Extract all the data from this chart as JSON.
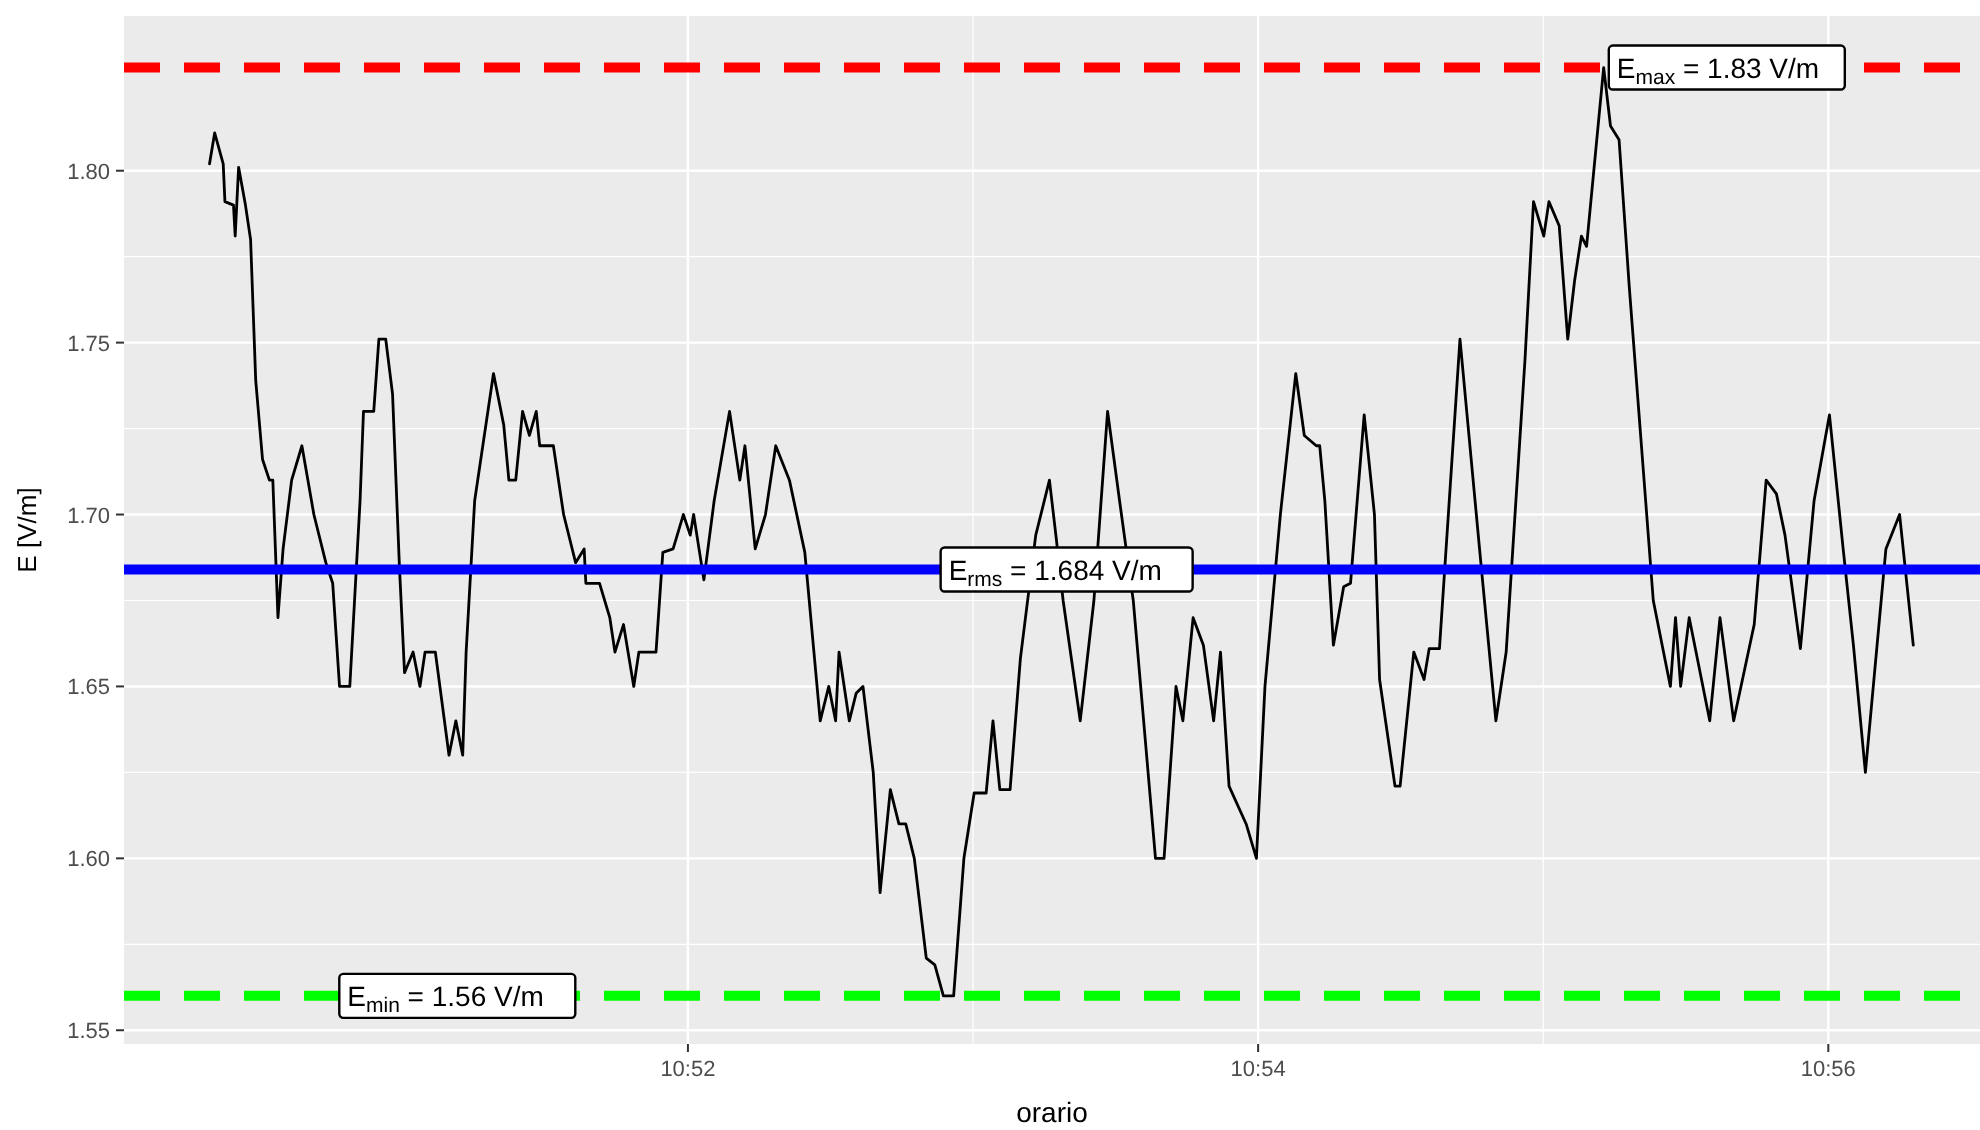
{
  "chart_data": {
    "type": "line",
    "xlabel": "orario",
    "ylabel": "E [V/m]",
    "xlim": [
      10.8337,
      10.9422
    ],
    "ylim": [
      1.546,
      1.845
    ],
    "xticks": [
      {
        "value": 10.866667,
        "label": "10:52"
      },
      {
        "value": 10.9,
        "label": "10:54"
      },
      {
        "value": 10.933333,
        "label": "10:56"
      }
    ],
    "yticks": [
      {
        "value": 1.55,
        "label": "1.55"
      },
      {
        "value": 1.6,
        "label": "1.60"
      },
      {
        "value": 1.65,
        "label": "1.65"
      },
      {
        "value": 1.7,
        "label": "1.70"
      },
      {
        "value": 1.75,
        "label": "1.75"
      },
      {
        "value": 1.8,
        "label": "1.80"
      }
    ],
    "grid": true,
    "marker": "none",
    "line_style": "solid",
    "series": [
      {
        "color": "#000000",
        "x": [
          10.8387,
          10.839,
          10.8395,
          10.8396,
          10.8401,
          10.8402,
          10.8404,
          10.8408,
          10.8411,
          10.8414,
          10.8418,
          10.8422,
          10.8424,
          10.8427,
          10.843,
          10.8435,
          10.8441,
          10.8448,
          10.8455,
          10.8459,
          10.8463,
          10.8469,
          10.8475,
          10.8477,
          10.8483,
          10.8486,
          10.849,
          10.8494,
          10.8498,
          10.8501,
          10.8506,
          10.851,
          10.8513,
          10.8519,
          10.8527,
          10.8531,
          10.8535,
          10.8537,
          10.8542,
          10.8553,
          10.8559,
          10.8562,
          10.8566,
          10.857,
          10.8574,
          10.8578,
          10.858,
          10.8588,
          10.8594,
          10.8601,
          10.8606,
          10.8607,
          10.8615,
          10.8621,
          10.8624,
          10.8629,
          10.8635,
          10.8638,
          10.8648,
          10.8652,
          10.8658,
          10.8664,
          10.8668,
          10.867,
          10.8676,
          10.8682,
          10.8691,
          10.8697,
          10.87,
          10.8706,
          10.8712,
          10.8718,
          10.8726,
          10.8735,
          10.8744,
          10.8749,
          10.8753,
          10.8755,
          10.8761,
          10.8765,
          10.8769,
          10.8775,
          10.8779,
          10.8785,
          10.879,
          10.8794,
          10.8799,
          10.8806,
          10.8811,
          10.8816,
          10.8822,
          10.8828,
          10.8834,
          10.8841,
          10.8845,
          10.8849,
          10.8855,
          10.8861,
          10.887,
          10.8878,
          10.8882,
          10.8886,
          10.8896,
          10.8904,
          10.8912,
          10.8919,
          10.8927,
          10.894,
          10.8945,
          10.8952,
          10.8956,
          10.8962,
          10.8968,
          10.8974,
          10.8978,
          10.8983,
          10.8993,
          10.8999,
          10.9004,
          10.9013,
          10.9022,
          10.9027,
          10.9034,
          10.9036,
          10.9039,
          10.9044,
          10.905,
          10.9054,
          10.9062,
          10.9068,
          10.9071,
          10.908,
          10.9083,
          10.9091,
          10.9097,
          10.91,
          10.9106,
          10.9118,
          10.913,
          10.9139,
          10.9145,
          10.9156,
          10.9161,
          10.9167,
          10.917,
          10.9176,
          10.9181,
          10.9185,
          10.9189,
          10.9192,
          10.9202,
          10.9206,
          10.9211,
          10.9217,
          10.9231,
          10.9241,
          10.9244,
          10.9247,
          10.9252,
          10.9256,
          10.9264,
          10.927,
          10.9278,
          10.929,
          10.9297,
          10.9303,
          10.9308,
          10.9317,
          10.9325,
          10.9334,
          10.9342,
          10.9348,
          10.9355,
          10.9367,
          10.9375,
          10.9383
        ],
        "values": [
          1.802,
          1.811,
          1.802,
          1.791,
          1.79,
          1.781,
          1.801,
          1.79,
          1.78,
          1.739,
          1.716,
          1.71,
          1.71,
          1.67,
          1.69,
          1.71,
          1.72,
          1.7,
          1.686,
          1.68,
          1.65,
          1.65,
          1.704,
          1.73,
          1.73,
          1.751,
          1.751,
          1.735,
          1.685,
          1.654,
          1.66,
          1.65,
          1.66,
          1.66,
          1.63,
          1.64,
          1.63,
          1.66,
          1.704,
          1.741,
          1.726,
          1.71,
          1.71,
          1.73,
          1.723,
          1.73,
          1.72,
          1.72,
          1.7,
          1.686,
          1.69,
          1.68,
          1.68,
          1.67,
          1.66,
          1.668,
          1.65,
          1.66,
          1.66,
          1.689,
          1.69,
          1.7,
          1.694,
          1.7,
          1.681,
          1.704,
          1.73,
          1.71,
          1.72,
          1.69,
          1.7,
          1.72,
          1.71,
          1.689,
          1.64,
          1.65,
          1.64,
          1.66,
          1.64,
          1.648,
          1.65,
          1.625,
          1.59,
          1.62,
          1.61,
          1.61,
          1.6,
          1.571,
          1.569,
          1.56,
          1.56,
          1.6,
          1.619,
          1.619,
          1.64,
          1.62,
          1.62,
          1.658,
          1.694,
          1.71,
          1.693,
          1.675,
          1.64,
          1.675,
          1.73,
          1.704,
          1.675,
          1.6,
          1.6,
          1.65,
          1.64,
          1.67,
          1.662,
          1.64,
          1.66,
          1.621,
          1.61,
          1.6,
          1.65,
          1.7,
          1.741,
          1.723,
          1.72,
          1.72,
          1.704,
          1.662,
          1.679,
          1.68,
          1.729,
          1.7,
          1.652,
          1.621,
          1.621,
          1.66,
          1.652,
          1.661,
          1.661,
          1.751,
          1.687,
          1.64,
          1.66,
          1.745,
          1.791,
          1.781,
          1.791,
          1.784,
          1.751,
          1.768,
          1.781,
          1.778,
          1.83,
          1.813,
          1.809,
          1.766,
          1.675,
          1.65,
          1.67,
          1.65,
          1.67,
          1.66,
          1.64,
          1.67,
          1.64,
          1.668,
          1.71,
          1.706,
          1.694,
          1.661,
          1.704,
          1.729,
          1.69,
          1.662,
          1.625,
          1.69,
          1.7,
          1.662
        ]
      }
    ],
    "ref_lines": [
      {
        "axis": "y",
        "value": 1.83,
        "label": "E$_{max}$ = 1.83 V/m",
        "color": "#ff0000",
        "line_style": "dashed"
      },
      {
        "axis": "y",
        "value": 1.684,
        "label": "E$_{rms}$ = 1.684 V/m",
        "color": "#0000ff",
        "line_style": "solid"
      },
      {
        "axis": "y",
        "value": 1.56,
        "label": "E$_{min}$ = 1.56 V/m",
        "color": "#00ff00",
        "line_style": "dashed"
      }
    ]
  }
}
